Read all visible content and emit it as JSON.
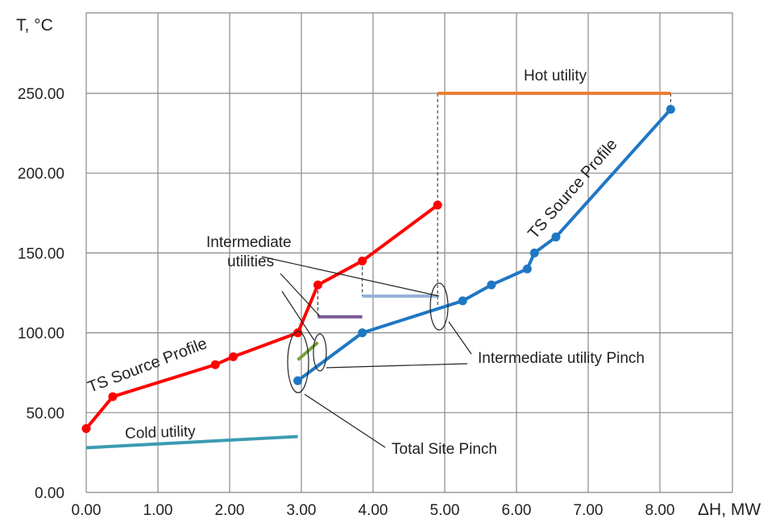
{
  "chart_data": {
    "type": "line",
    "ylabel": "T, °C",
    "xlabel": "ΔH, MW",
    "xlim": [
      0,
      8.5
    ],
    "ylim": [
      0,
      250
    ],
    "x_ticks": [
      "0.00",
      "1.00",
      "2.00",
      "3.00",
      "4.00",
      "5.00",
      "6.00",
      "7.00",
      "8.00"
    ],
    "y_ticks": [
      "0.00",
      "50.00",
      "100.00",
      "150.00",
      "200.00",
      "250.00"
    ],
    "grid": true,
    "series": [
      {
        "name": "TS Source Profile",
        "color": "#ff0000",
        "points": [
          [
            0.0,
            40
          ],
          [
            0.37,
            60
          ],
          [
            1.8,
            80
          ],
          [
            2.05,
            85
          ],
          [
            2.95,
            100
          ],
          [
            2.97,
            102
          ],
          [
            3.23,
            130
          ],
          [
            3.85,
            145
          ],
          [
            4.9,
            180
          ]
        ]
      },
      {
        "name": "TS Source Profile",
        "color": "#1f77c4",
        "points": [
          [
            2.95,
            70
          ],
          [
            3.85,
            100
          ],
          [
            5.25,
            120
          ],
          [
            5.65,
            130
          ],
          [
            6.15,
            140
          ],
          [
            6.25,
            150
          ],
          [
            6.55,
            160
          ],
          [
            8.15,
            240
          ]
        ]
      }
    ],
    "utilities": [
      {
        "name": "Hot utility",
        "color": "#ed7d31",
        "x": [
          4.9,
          8.15
        ],
        "y": [
          250,
          250
        ]
      },
      {
        "name": "Cold utility",
        "color": "#3b9bb1",
        "x": [
          0.0,
          2.95
        ],
        "y": [
          28,
          35
        ]
      },
      {
        "name": "Intermediate utility (purple)",
        "color": "#7a5a96",
        "x": [
          3.23,
          3.85
        ],
        "y": [
          110,
          110
        ]
      },
      {
        "name": "Intermediate utility (light blue)",
        "color": "#95b3d7",
        "x": [
          3.85,
          4.9
        ],
        "y": [
          123,
          123
        ]
      },
      {
        "name": "Intermediate utility (green)",
        "color": "#77a03c",
        "x": [
          2.95,
          3.23
        ],
        "y": [
          83,
          94
        ]
      }
    ],
    "annotations": {
      "hot_utility": "Hot utility",
      "cold_utility": "Cold utility",
      "intermediate_utilities_line1": "Intermediate",
      "intermediate_utilities_line2": "utilities",
      "intermediate_utility_pinch": "Intermediate utility Pinch",
      "total_site_pinch": "Total Site Pinch",
      "sink_profile_label": "TS Source Profile",
      "source_profile_label": "TS Source Profile"
    }
  }
}
